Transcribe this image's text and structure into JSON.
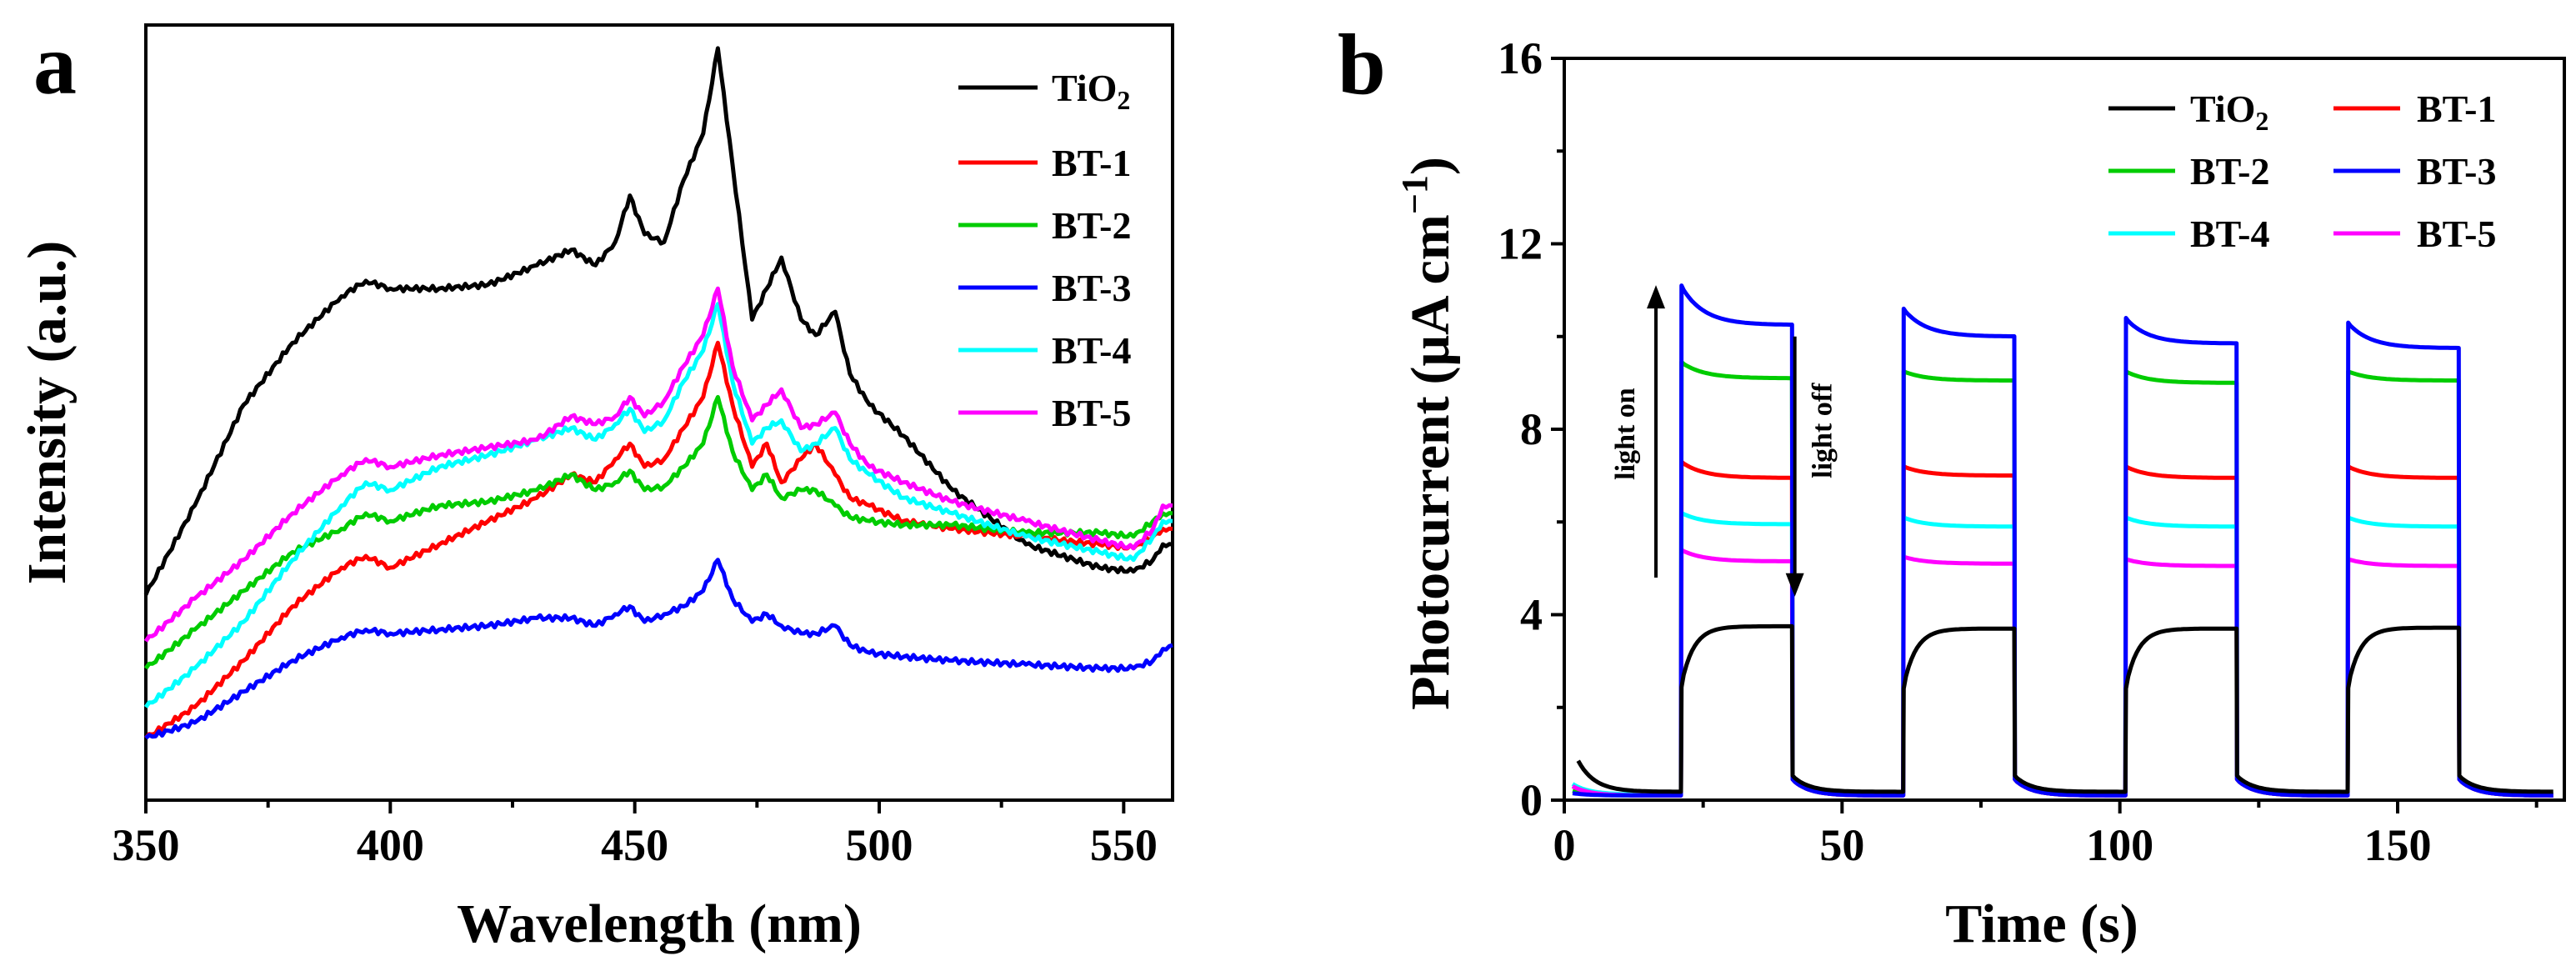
{
  "chart_data": [
    {
      "type": "line",
      "panel_label": "a",
      "xlabel": "Wavelength (nm)",
      "ylabel": "Intensity (a.u.)",
      "xlim": [
        350,
        560
      ],
      "ylim": [
        0,
        100
      ],
      "y_tick_labels": false,
      "x_ticks": [
        350,
        400,
        450,
        500,
        550
      ],
      "x_tick_labels": [
        "350",
        "400",
        "450",
        "500",
        "550"
      ],
      "legend": {
        "placement": "top-right",
        "entries": [
          "TiO",
          "BT-1",
          "BT-2",
          "BT-3",
          "BT-4",
          "BT-5"
        ],
        "subscripts": [
          "2",
          "",
          "",
          "",
          "",
          ""
        ]
      },
      "x": [
        350,
        360,
        370,
        380,
        390,
        395,
        400,
        410,
        420,
        430,
        437,
        442,
        446,
        449,
        452,
        456,
        460,
        464,
        467,
        470,
        474,
        477,
        480,
        484,
        487,
        491,
        494,
        498,
        505,
        515,
        530,
        545,
        552,
        556,
        558,
        560
      ],
      "series": [
        {
          "name": "TiO2",
          "color": "#000000",
          "values": [
            26.5,
            38,
            51,
            59,
            65,
            67,
            66,
            66,
            66.5,
            69,
            71,
            69,
            72,
            78,
            73,
            72,
            80,
            86,
            97,
            82,
            62,
            66,
            70,
            62,
            60,
            63,
            55,
            51,
            47,
            40,
            33,
            30,
            29.5,
            31,
            33,
            33
          ]
        },
        {
          "name": "BT-1",
          "color": "#ff0000",
          "values": [
            8,
            12,
            18,
            25,
            30,
            31.5,
            30,
            33,
            36,
            39,
            42,
            41,
            44,
            46,
            43,
            44,
            48,
            52,
            59,
            51,
            43,
            46,
            41,
            44,
            46,
            42,
            39,
            38,
            36,
            35,
            34,
            33,
            32.5,
            34,
            35,
            35
          ]
        },
        {
          "name": "BT-2",
          "color": "#00cc00",
          "values": [
            17,
            22,
            27,
            32,
            35,
            37,
            36,
            38,
            38.5,
            40,
            42,
            40,
            41,
            42.5,
            40,
            40.5,
            43,
            46,
            52,
            45,
            40,
            42,
            39,
            40,
            40,
            38,
            36.5,
            36,
            35.5,
            35.5,
            34.5,
            34.5,
            34,
            36,
            37,
            37
          ]
        },
        {
          "name": "BT-3",
          "color": "#0000ff",
          "values": [
            8,
            10,
            14,
            18,
            21,
            22,
            21.5,
            22,
            22.5,
            23.5,
            23.5,
            22.5,
            24,
            25,
            23,
            24,
            25,
            27,
            31,
            26,
            23,
            24,
            22.5,
            21.5,
            21.5,
            22.5,
            20,
            19,
            18.5,
            18,
            17.5,
            17,
            17,
            18,
            19.5,
            20
          ]
        },
        {
          "name": "BT-4",
          "color": "#00ffff",
          "values": [
            12,
            17,
            23,
            31,
            38,
            41,
            40,
            43,
            44.5,
            46.5,
            48,
            46.5,
            48.5,
            50.5,
            47.5,
            49,
            54,
            58,
            64,
            54,
            46,
            48,
            49,
            45,
            46,
            48,
            44,
            42,
            39,
            37,
            34,
            32,
            31,
            34,
            36,
            36
          ]
        },
        {
          "name": "BT-5",
          "color": "#ff00ff",
          "values": [
            20.5,
            26,
            31,
            37,
            42,
            44,
            43,
            44.5,
            45.5,
            46.5,
            49.5,
            48.5,
            49.5,
            52,
            49.5,
            51.5,
            56,
            60,
            66,
            56,
            49,
            51,
            53,
            48,
            48.5,
            50,
            46,
            43,
            41,
            38.5,
            36,
            33.5,
            32.5,
            35,
            38,
            38
          ]
        }
      ]
    },
    {
      "type": "line",
      "panel_label": "b",
      "xlabel": "Time (s)",
      "ylabel_prefix": "Photocurrent",
      "ylabel_unit": "(μA cm",
      "ylabel_exponent": "−1",
      "ylabel_suffix": ")",
      "xlim": [
        0,
        180
      ],
      "ylim": [
        0,
        16
      ],
      "x_ticks": [
        0,
        50,
        100,
        150
      ],
      "x_tick_labels": [
        "0",
        "50",
        "100",
        "150"
      ],
      "y_ticks": [
        0,
        4,
        8,
        12,
        16
      ],
      "y_tick_labels": [
        "0",
        "4",
        "8",
        "12",
        "16"
      ],
      "legend": {
        "placement": "top-right",
        "columns": 2,
        "entries": [
          "TiO",
          "BT-1",
          "BT-2",
          "BT-3",
          "BT-4",
          "BT-5"
        ],
        "subscripts": [
          "2",
          "",
          "",
          "",
          "",
          ""
        ]
      },
      "annotations": [
        {
          "text": "light on",
          "arrow": "up",
          "x": 16.5,
          "y_from": 4.8,
          "y_to": 11.0
        },
        {
          "text": "light off",
          "arrow": "down",
          "x": 41.5,
          "y_from": 10.0,
          "y_to": 4.5
        }
      ],
      "on_intervals": [
        [
          21,
          41
        ],
        [
          61,
          81
        ],
        [
          101,
          121
        ],
        [
          141,
          161
        ]
      ],
      "off_levels": [
        {
          "name": "TiO2",
          "start": 0.85,
          "end": 0.18,
          "relax": 0.14
        },
        {
          "name": "BT-1",
          "start": 0.3,
          "end": 0.1,
          "relax": 0.14
        },
        {
          "name": "BT-2",
          "start": 0.2,
          "end": 0.1,
          "relax": 0.14
        },
        {
          "name": "BT-3",
          "start": 0.15,
          "end": 0.1,
          "relax": 0.14
        },
        {
          "name": "BT-4",
          "start": 0.35,
          "end": 0.12,
          "relax": 0.14
        },
        {
          "name": "BT-5",
          "start": 0.3,
          "end": 0.1,
          "relax": 0.14
        }
      ],
      "series": [
        {
          "name": "TiO2",
          "color": "#000000",
          "on_values": [
            3.75,
            3.7,
            3.7,
            3.72
          ],
          "rise_start": 2.5,
          "rise": "slow"
        },
        {
          "name": "BT-1",
          "color": "#ff0000",
          "on_values": [
            6.95,
            7.0,
            6.95,
            6.95
          ],
          "peak": [
            7.3,
            7.2,
            7.2,
            7.2
          ]
        },
        {
          "name": "BT-2",
          "color": "#00cc00",
          "on_values": [
            9.1,
            9.05,
            9.0,
            9.05
          ],
          "peak": [
            9.45,
            9.25,
            9.25,
            9.25
          ]
        },
        {
          "name": "BT-3",
          "color": "#0000ff",
          "on_values": [
            10.25,
            10.0,
            9.85,
            9.75
          ],
          "peak": [
            11.1,
            10.6,
            10.4,
            10.3
          ]
        },
        {
          "name": "BT-4",
          "color": "#00ffff",
          "on_values": [
            5.95,
            5.9,
            5.9,
            5.9
          ],
          "peak": [
            6.2,
            6.1,
            6.1,
            6.1
          ]
        },
        {
          "name": "BT-5",
          "color": "#ff00ff",
          "on_values": [
            5.15,
            5.1,
            5.05,
            5.05
          ],
          "peak": [
            5.4,
            5.25,
            5.2,
            5.2
          ]
        }
      ]
    }
  ]
}
